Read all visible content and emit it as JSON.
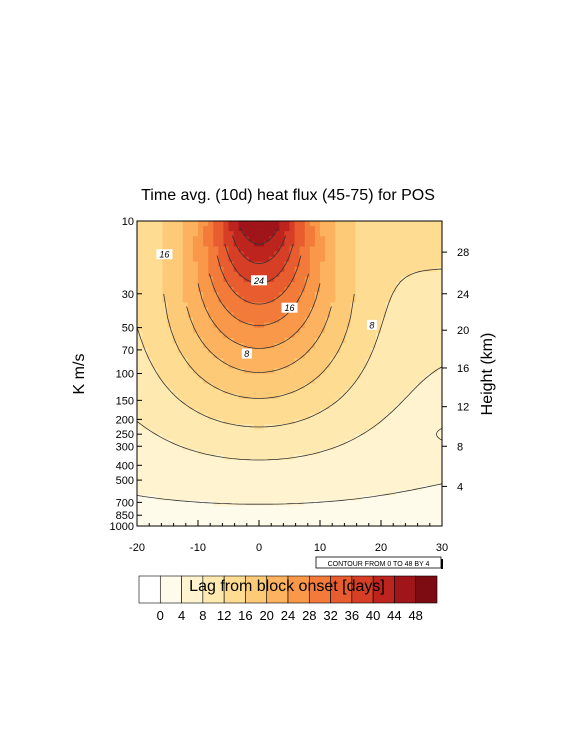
{
  "chart_data": {
    "type": "heatmap",
    "title": "Time avg. (10d) heat flux (45-75) for POS",
    "xlabel": "",
    "ylabel": "K m/s",
    "ylabel_right": "Height (km)",
    "x_ticks": [
      "-20",
      "-10",
      "0",
      "10",
      "20",
      "30"
    ],
    "x_tick_values": [
      -20,
      -10,
      0,
      10,
      20,
      30
    ],
    "xlim": [
      -20,
      30
    ],
    "y_ticks": [
      "10",
      "30",
      "50",
      "70",
      "100",
      "150",
      "200",
      "250",
      "300",
      "400",
      "500",
      "700",
      "850",
      "1000"
    ],
    "y_tick_values": [
      10,
      30,
      50,
      70,
      100,
      150,
      200,
      250,
      300,
      400,
      500,
      700,
      850,
      1000
    ],
    "ylim": [
      1000,
      10
    ],
    "y_scale": "log",
    "right_ticks": [
      "4",
      "8",
      "12",
      "16",
      "20",
      "24",
      "28"
    ],
    "right_tick_pressures": [
      550,
      300,
      165,
      92,
      52,
      30,
      16
    ],
    "contour_info": "CONTOUR FROM 0 TO 48 BY 4",
    "contour_min": 0,
    "contour_max": 48,
    "contour_step": 4,
    "contour_labels": [
      {
        "text": "16",
        "x": -15.5,
        "p": 16.5
      },
      {
        "text": "24",
        "x": 0,
        "p": 24.5
      },
      {
        "text": "16",
        "x": 5,
        "p": 37
      },
      {
        "text": "8",
        "x": 18.5,
        "p": 48
      },
      {
        "text": "8",
        "x": -2,
        "p": 74
      }
    ],
    "colorbar": {
      "title": "Lag from block onset [days]",
      "labels": [
        "0",
        "4",
        "8",
        "12",
        "16",
        "20",
        "24",
        "28",
        "32",
        "36",
        "40",
        "44",
        "48"
      ],
      "colors": [
        "#ffffff",
        "#fffbea",
        "#fff4cf",
        "#feeab0",
        "#fedd92",
        "#fdcb78",
        "#fcb25e",
        "#f99849",
        "#f37b3a",
        "#e85d2f",
        "#d63e26",
        "#bd241e",
        "#9f1519",
        "#7d0c12"
      ]
    },
    "peak": {
      "x": 0,
      "p": 10,
      "value": 46
    },
    "low_levels": {
      "value": 3
    },
    "closed_contour_right": {
      "x": 29.5,
      "p": 250
    }
  }
}
